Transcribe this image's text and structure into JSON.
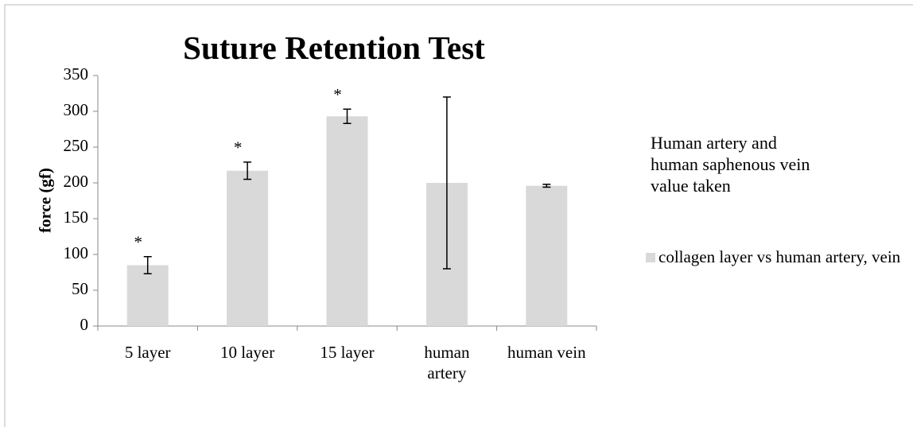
{
  "chart_data": {
    "type": "bar",
    "title": "Suture Retention Test",
    "y_label": "force (gf)",
    "annotation": "Human artery and human saphenous vein value taken",
    "categories": [
      "5 layer",
      "10 layer",
      "15 layer",
      "human artery",
      "human vein"
    ],
    "series": [
      {
        "name": "collagen layer vs human artery, vein",
        "color": "#d9d9d9",
        "values": [
          85,
          217,
          293,
          200,
          196
        ],
        "errors": [
          12,
          12,
          10,
          120,
          2
        ],
        "markers": [
          "*",
          "*",
          "*",
          null,
          null
        ]
      }
    ],
    "ylim": [
      0,
      350
    ],
    "yticks": [
      0,
      50,
      100,
      150,
      200,
      250,
      300,
      350
    ],
    "grid": false,
    "legend": "right"
  }
}
